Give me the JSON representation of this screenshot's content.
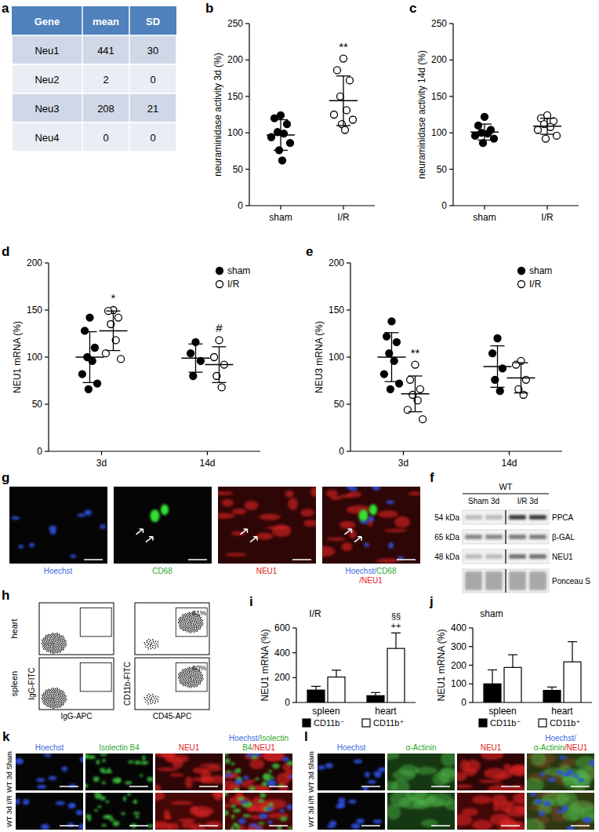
{
  "table": {
    "panel": "a",
    "header": [
      "Gene",
      "mean",
      "SD"
    ],
    "rows": [
      [
        "Neu1",
        441,
        30
      ],
      [
        "Neu2",
        2,
        0
      ],
      [
        "Neu3",
        208,
        21
      ],
      [
        "Neu4",
        0,
        0
      ]
    ]
  },
  "chart_data": [
    {
      "panel": "b",
      "type": "dot",
      "y_label": "neuraminidase activity 3d (%)",
      "ylim": [
        0,
        250
      ],
      "yticks": [
        0,
        50,
        100,
        150,
        200,
        250
      ],
      "series": [
        {
          "name": "sham",
          "marker": "filled",
          "values": [
            124,
            120,
            112,
            101,
            99,
            94,
            86,
            76,
            62
          ],
          "mean": 97,
          "sd": 21
        },
        {
          "name": "I/R",
          "marker": "open",
          "values": [
            202,
            186,
            172,
            150,
            131,
            125,
            118,
            112,
            104
          ],
          "mean": 144,
          "sd": 34
        }
      ],
      "annotations": [
        {
          "series": 1,
          "text": "**"
        }
      ]
    },
    {
      "panel": "c",
      "type": "dot",
      "y_label": "neuraminidase activity 14d (%)",
      "ylim": [
        0,
        250
      ],
      "yticks": [
        0,
        50,
        100,
        150,
        200,
        250
      ],
      "series": [
        {
          "name": "sham",
          "marker": "filled",
          "values": [
            122,
            110,
            104,
            100,
            99,
            96,
            92,
            86
          ],
          "mean": 101,
          "sd": 11
        },
        {
          "name": "I/R",
          "marker": "open",
          "values": [
            124,
            120,
            116,
            112,
            108,
            104,
            96,
            92
          ],
          "mean": 109,
          "sd": 11
        }
      ],
      "annotations": []
    },
    {
      "panel": "d",
      "type": "grouped_dot",
      "y_label": "NEU1 mRNA (%)",
      "ylim": [
        0,
        200
      ],
      "yticks": [
        0,
        50,
        100,
        150,
        200
      ],
      "categories": [
        "3d",
        "14d"
      ],
      "legend": "top-right",
      "series": [
        {
          "name": "sham",
          "marker": "filled",
          "values": [
            [
              142,
              128,
              110,
              100,
              96,
              82,
              72,
              66
            ],
            [
              116,
              104,
              96,
              80
            ]
          ],
          "mean": [
            100,
            99
          ],
          "sd": [
            27,
            15
          ]
        },
        {
          "name": "I/R",
          "marker": "open",
          "values": [
            [
              150,
              149,
              142,
              135,
              118,
              104,
              98
            ],
            [
              118,
              100,
              92,
              80,
              68
            ]
          ],
          "mean": [
            128,
            92
          ],
          "sd": [
            21,
            19
          ]
        }
      ],
      "annotations": [
        {
          "category": 0,
          "series": 1,
          "text": "*"
        },
        {
          "category": 1,
          "series": 1,
          "text": "#"
        }
      ]
    },
    {
      "panel": "e",
      "type": "grouped_dot",
      "y_label": "NEU3 mRNA (%)",
      "ylim": [
        0,
        200
      ],
      "yticks": [
        0,
        50,
        100,
        150,
        200
      ],
      "categories": [
        "3d",
        "14d"
      ],
      "legend": "top-right",
      "series": [
        {
          "name": "sham",
          "marker": "filled",
          "values": [
            [
              138,
              122,
              116,
              104,
              96,
              82,
              72,
              66
            ],
            [
              120,
              104,
              88,
              76,
              64
            ]
          ],
          "mean": [
            100,
            90
          ],
          "sd": [
            26,
            22
          ]
        },
        {
          "name": "I/R",
          "marker": "open",
          "values": [
            [
              92,
              76,
              66,
              60,
              54,
              44,
              34
            ],
            [
              96,
              92,
              76,
              66,
              60
            ]
          ],
          "mean": [
            61,
            78
          ],
          "sd": [
            19,
            16
          ]
        }
      ],
      "annotations": [
        {
          "category": 0,
          "series": 1,
          "text": "**"
        }
      ]
    },
    {
      "panel": "i",
      "type": "bar",
      "title": "I/R",
      "y_label": "NEU1 mRNA (%)",
      "ylim": [
        0,
        600
      ],
      "yticks": [
        0,
        200,
        400,
        600
      ],
      "categories": [
        "spleen",
        "heart"
      ],
      "legend": "bottom",
      "series": [
        {
          "name": "CD11b⁻",
          "color": "#000000",
          "values": [
            100,
            55
          ],
          "errors": [
            30,
            25
          ]
        },
        {
          "name": "CD11b⁺",
          "color": "#ffffff",
          "values": [
            205,
            435
          ],
          "errors": [
            55,
            125
          ]
        }
      ],
      "annotations": [
        {
          "category": 1,
          "series": 1,
          "text": "§§"
        },
        {
          "category": 1,
          "series": 1,
          "text": "++"
        }
      ]
    },
    {
      "panel": "j",
      "type": "bar",
      "title": "sham",
      "y_label": "NEU1 mRNA (%)",
      "ylim": [
        0,
        400
      ],
      "yticks": [
        0,
        100,
        200,
        300,
        400
      ],
      "categories": [
        "spleen",
        "heart"
      ],
      "legend": "bottom",
      "series": [
        {
          "name": "CD11b⁻",
          "color": "#000000",
          "values": [
            100,
            65
          ],
          "errors": [
            75,
            18
          ]
        },
        {
          "name": "CD11b⁺",
          "color": "#ffffff",
          "values": [
            188,
            218
          ],
          "errors": [
            68,
            108
          ]
        }
      ],
      "annotations": []
    }
  ],
  "blot": {
    "panel": "f",
    "group": "WT",
    "lanes": [
      "Sham 3d",
      "I/R 3d"
    ],
    "bands": [
      {
        "size": "54 kDa",
        "name": "PPCA"
      },
      {
        "size": "65 kDa",
        "name": "β-GAL"
      },
      {
        "size": "48 kDa",
        "name": "NEU1"
      },
      {
        "size": "",
        "name": "Ponceau S"
      }
    ]
  },
  "flow": {
    "panel": "h",
    "rows": [
      "heart",
      "spleen"
    ],
    "columns": [
      {
        "x_label": "IgG-APC",
        "y_label": "IgG-FITC",
        "gate_labels": [
          null,
          null
        ]
      },
      {
        "x_label": "CD45-APC",
        "y_label": "CD11b-FITC",
        "gate_labels": [
          "81%",
          "80%"
        ]
      }
    ]
  },
  "micrographs": [
    {
      "panel": "g",
      "rows": [],
      "columns": [
        {
          "lines": [
            [
              {
                "text": "Hoechst",
                "color": "#4169e1"
              }
            ]
          ]
        },
        {
          "lines": [
            [
              {
                "text": "CD68",
                "color": "#2ea82e"
              }
            ]
          ]
        },
        {
          "lines": [
            [
              {
                "text": "NEU1",
                "color": "#e02020"
              }
            ]
          ]
        },
        {
          "lines": [
            [
              {
                "text": "Hoechst/",
                "color": "#4169e1"
              },
              {
                "text": "CD68",
                "color": "#2ea82e"
              }
            ],
            [
              {
                "text": "/NEU1",
                "color": "#e02020"
              }
            ]
          ]
        }
      ]
    },
    {
      "panel": "k",
      "rows": [
        "WT 3d Sham",
        "WT 3d I/R"
      ],
      "columns": [
        {
          "lines": [
            [
              {
                "text": "Hoechst",
                "color": "#4169e1"
              }
            ]
          ]
        },
        {
          "lines": [
            [
              {
                "text": "Isolectin B4",
                "color": "#2ea82e"
              }
            ]
          ]
        },
        {
          "lines": [
            [
              {
                "text": "NEU1",
                "color": "#e02020"
              }
            ]
          ]
        },
        {
          "lines": [
            [
              {
                "text": "Hoechst/",
                "color": "#4169e1"
              },
              {
                "text": "Isolectin",
                "color": "#2ea82e"
              }
            ],
            [
              {
                "text": "B4",
                "color": "#2ea82e"
              },
              {
                "text": "/NEU1",
                "color": "#e02020"
              }
            ]
          ]
        }
      ]
    },
    {
      "panel": "l",
      "rows": [
        "WT 3d Sham",
        "WT 3d I/R"
      ],
      "columns": [
        {
          "lines": [
            [
              {
                "text": "Hoechst",
                "color": "#4169e1"
              }
            ]
          ]
        },
        {
          "lines": [
            [
              {
                "text": "α-Actinin",
                "color": "#2ea82e"
              }
            ]
          ]
        },
        {
          "lines": [
            [
              {
                "text": "NEU1",
                "color": "#e02020"
              }
            ]
          ]
        },
        {
          "lines": [
            [
              {
                "text": "Hoechst/",
                "color": "#4169e1"
              }
            ],
            [
              {
                "text": "α-Actinin",
                "color": "#2ea82e"
              },
              {
                "text": "/NEU1",
                "color": "#e02020"
              }
            ]
          ]
        }
      ]
    }
  ]
}
